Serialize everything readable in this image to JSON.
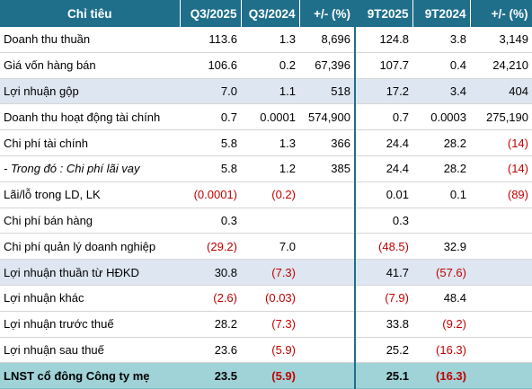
{
  "header": {
    "label": "Chỉ tiêu",
    "cols": [
      "Q3/2025",
      "Q3/2024",
      "+/- (%)",
      "9T2025",
      "9T2024",
      "+/- (%)"
    ]
  },
  "rows": [
    {
      "label": "Doanh thu thuần",
      "v": [
        "113.6",
        "1.3",
        "8,696",
        "124.8",
        "3.8",
        "3,149"
      ]
    },
    {
      "label": "Giá vốn hàng bán",
      "v": [
        "106.6",
        "0.2",
        "67,396",
        "107.7",
        "0.4",
        "24,210"
      ]
    },
    {
      "label": "Lợi nhuận gộp",
      "v": [
        "7.0",
        "1.1",
        "518",
        "17.2",
        "3.4",
        "404"
      ]
    },
    {
      "label": "Doanh thu hoạt động tài chính",
      "v": [
        "0.7",
        "0.0001",
        "574,900",
        "0.7",
        "0.0003",
        "275,190"
      ]
    },
    {
      "label": "Chi phí tài chính",
      "v": [
        "5.8",
        "1.3",
        "366",
        "24.4",
        "28.2",
        "(14)"
      ]
    },
    {
      "label": "- Trong đó : Chi phí lãi vay",
      "v": [
        "5.8",
        "1.2",
        "385",
        "24.4",
        "28.2",
        "(14)"
      ]
    },
    {
      "label": "Lãi/lỗ trong LD, LK",
      "v": [
        "(0.0001)",
        "(0.2)",
        "",
        "0.01",
        "0.1",
        "(89)"
      ]
    },
    {
      "label": "Chi phí bán hàng",
      "v": [
        "0.3",
        "",
        "",
        "0.3",
        "",
        ""
      ]
    },
    {
      "label": "Chi phí quản lý doanh nghiệp",
      "v": [
        "(29.2)",
        "7.0",
        "",
        "(48.5)",
        "32.9",
        ""
      ]
    },
    {
      "label": "Lợi nhuận thuần từ HĐKD",
      "v": [
        "30.8",
        "(7.3)",
        "",
        "41.7",
        "(57.6)",
        ""
      ]
    },
    {
      "label": "Lợi nhuận khác",
      "v": [
        "(2.6)",
        "(0.03)",
        "",
        "(7.9)",
        "48.4",
        ""
      ]
    },
    {
      "label": "Lợi nhuận trước thuế",
      "v": [
        "28.2",
        "(7.3)",
        "",
        "33.8",
        "(9.2)",
        ""
      ]
    },
    {
      "label": "Lợi nhuận sau thuế",
      "v": [
        "23.6",
        "(5.9)",
        "",
        "25.2",
        "(16.3)",
        ""
      ]
    },
    {
      "label": "LNST cổ đông Công ty mẹ",
      "v": [
        "23.5",
        "(5.9)",
        "",
        "25.1",
        "(16.3)",
        ""
      ]
    }
  ],
  "colors": {
    "header_bg": "#1f6f8b",
    "highlight_bg": "#dde6f1",
    "total_bg": "#9fd3d7",
    "negative": "#c00000"
  }
}
